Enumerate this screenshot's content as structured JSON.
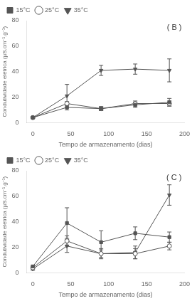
{
  "chart_data": [
    {
      "type": "line",
      "annotation": "( B )",
      "x_label": "Tempo de armazenamento (dias)",
      "y_label": "Condutividade elétrica (µS.cm⁻¹.g⁻¹)",
      "x": [
        0,
        45,
        90,
        135,
        180
      ],
      "series": [
        {
          "name": "15°C",
          "color": "#555555",
          "marker": "square",
          "line_style": "solid",
          "values": [
            4,
            12,
            11,
            14,
            16
          ],
          "errors": [
            0.5,
            2.0,
            1.5,
            2.0,
            3.0
          ]
        },
        {
          "name": "25°C",
          "color": "#555555",
          "marker": "open_circle",
          "line_style": "solid",
          "values": [
            4,
            15,
            11,
            15,
            15
          ],
          "errors": [
            0.5,
            1.5,
            1.5,
            2.0,
            2.0
          ]
        },
        {
          "name": "35°C",
          "color": "#555555",
          "marker": "triangle_down",
          "line_style": "solid",
          "values": [
            4,
            21,
            41,
            42,
            41
          ],
          "errors": [
            0.5,
            9,
            4,
            4,
            9
          ]
        }
      ],
      "xlim": [
        -8,
        200
      ],
      "xticks": [
        0,
        50,
        100,
        150,
        200
      ],
      "ylim": [
        0,
        80
      ],
      "yticks": [
        0,
        20,
        40,
        60,
        80
      ],
      "grid": false,
      "legend": "upper left"
    },
    {
      "type": "line",
      "annotation": "( C )",
      "x_label": "Tempo de armazenamento (dias)",
      "y_label": "Condutividade elétrica (µS.cm⁻¹.g⁻¹)",
      "x": [
        0,
        45,
        90,
        135,
        180
      ],
      "series": [
        {
          "name": "15°C",
          "color": "#555555",
          "marker": "square",
          "line_style": "solid",
          "values": [
            5,
            39,
            24,
            31,
            28
          ],
          "errors": [
            1,
            12,
            9,
            5,
            4
          ]
        },
        {
          "name": "25°C",
          "color": "#555555",
          "marker": "open_circle",
          "line_style": "solid",
          "values": [
            4,
            25,
            15,
            15,
            21
          ],
          "errors": [
            1,
            4,
            3,
            4,
            3
          ]
        },
        {
          "name": "35°C",
          "color": "#555555",
          "marker": "triangle_down",
          "line_style": "solid",
          "values": [
            3,
            21,
            15,
            16,
            61
          ],
          "errors": [
            1,
            5,
            4,
            5,
            8
          ]
        }
      ],
      "xlim": [
        -8,
        200
      ],
      "xticks": [
        0,
        50,
        100,
        150,
        200
      ],
      "ylim": [
        0,
        80
      ],
      "yticks": [
        0,
        20,
        40,
        60,
        80
      ],
      "grid": false,
      "legend": "upper left"
    }
  ]
}
